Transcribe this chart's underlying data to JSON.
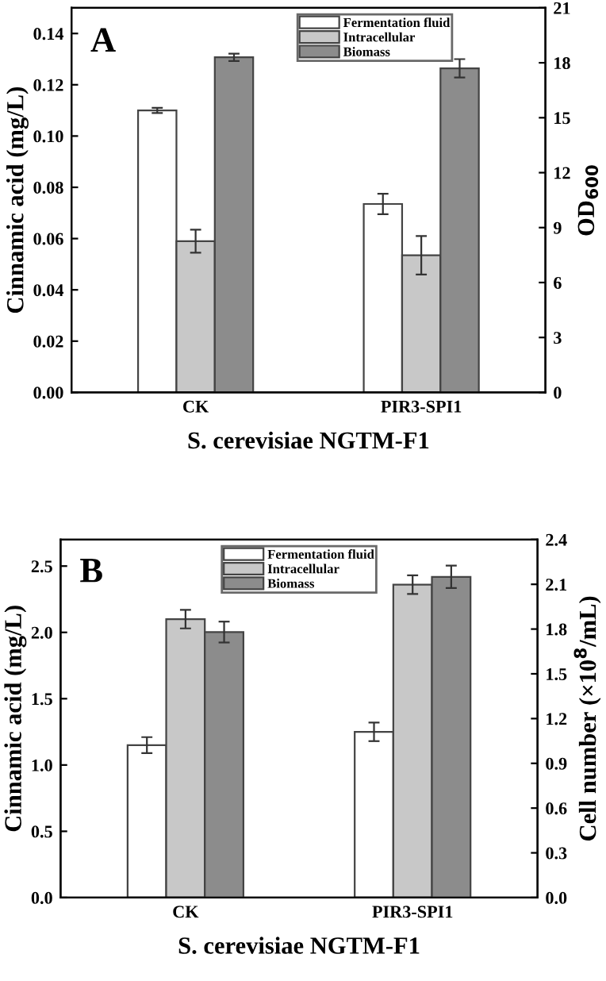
{
  "chart_data": [
    {
      "type": "bar",
      "categories": [
        "CK",
        "PIR3-SPI1"
      ],
      "xlabel": "S. cerevisiae NGTM-F1",
      "ylabel": "Cinnamic acid (mg/L)",
      "y2label": "OD$_{600}$",
      "annotations": [
        "A"
      ],
      "series": [
        {
          "name": "Fermentation fluid",
          "color": "#ffffff",
          "values": [
            0.11,
            0.0735
          ],
          "errors": [
            0.001,
            0.004
          ]
        },
        {
          "name": "Intracellular",
          "color": "#c8c8c8",
          "values": [
            0.059,
            0.0535
          ],
          "errors": [
            0.0045,
            0.0075
          ]
        },
        {
          "name": "Biomass",
          "color": "#8c8c8c",
          "values": [
            18.3,
            17.7
          ],
          "errors": [
            0.2,
            0.5
          ],
          "axis": "y2"
        }
      ],
      "ylim": [
        0,
        0.15
      ],
      "yticks": [
        {
          "value": 0,
          "label": "0.00"
        },
        0.02,
        0.04,
        0.06,
        0.08,
        {
          "value": 0.1,
          "label": "0.10"
        },
        0.12,
        0.14
      ],
      "y2lim": [
        0,
        21
      ],
      "y2ticks": [
        0,
        3,
        6,
        9,
        12,
        15,
        18,
        21
      ],
      "legend": "top",
      "grid": false
    },
    {
      "type": "bar",
      "categories": [
        "CK",
        "PIR3-SPI1"
      ],
      "xlabel": "S. cerevisiae NGTM-F1",
      "ylabel": "Cinnamic acid (mg/L)",
      "y2label": "Cell number (×10$^{8}$/mL)",
      "annotations": [
        "B"
      ],
      "series": [
        {
          "name": "Fermentation fluid",
          "color": "#ffffff",
          "values": [
            1.15,
            1.25
          ],
          "errors": [
            0.06,
            0.07
          ]
        },
        {
          "name": "Intracellular",
          "color": "#c8c8c8",
          "values": [
            2.1,
            2.36
          ],
          "errors": [
            0.07,
            0.07
          ]
        },
        {
          "name": "Biomass",
          "color": "#8c8c8c",
          "values": [
            1.78,
            2.15
          ],
          "errors": [
            0.07,
            0.075
          ],
          "axis": "y2"
        }
      ],
      "ylim": [
        0,
        2.7
      ],
      "yticks": [
        {
          "value": 0,
          "label": "0.0"
        },
        0.5,
        {
          "value": 1,
          "label": "1.0"
        },
        1.5,
        {
          "value": 2,
          "label": "2.0"
        },
        2.5
      ],
      "y2lim": [
        0,
        2.4
      ],
      "y2ticks": [
        {
          "value": 0,
          "label": "0.0"
        },
        0.3,
        0.6,
        0.9,
        1.2,
        1.5,
        1.8,
        2.1,
        2.4
      ],
      "legend": "top",
      "grid": false
    }
  ]
}
